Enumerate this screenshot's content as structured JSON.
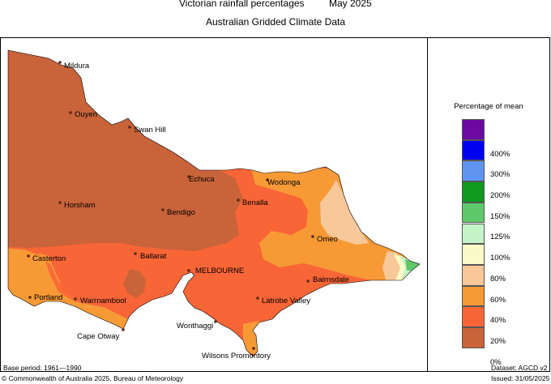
{
  "header": {
    "title": "Victorian rainfall percentages",
    "period": "May 2025",
    "subtitle": "Australian Gridded Climate Data"
  },
  "towns": [
    {
      "name": "Mildura"
    },
    {
      "name": "Ouyen"
    },
    {
      "name": "Swan Hill"
    },
    {
      "name": "Echuca"
    },
    {
      "name": "Wodonga"
    },
    {
      "name": "Horsham"
    },
    {
      "name": "Bendigo"
    },
    {
      "name": "Benalla"
    },
    {
      "name": "Omeo"
    },
    {
      "name": "Casterton"
    },
    {
      "name": "Ballarat"
    },
    {
      "name": "MELBOURNE"
    },
    {
      "name": "Bairnsdale"
    },
    {
      "name": "Portland"
    },
    {
      "name": "Warrnambool"
    },
    {
      "name": "Latrobe Valley"
    },
    {
      "name": "Cape Otway"
    },
    {
      "name": "Wonthaggi"
    },
    {
      "name": "Wilsons Promontory"
    }
  ],
  "legend": {
    "title": "Percentage of mean",
    "items": [
      {
        "label": "",
        "color": "#6a0aa0"
      },
      {
        "label": "400%",
        "color": "#0000f0"
      },
      {
        "label": "300%",
        "color": "#5f93f0"
      },
      {
        "label": "200%",
        "color": "#0d9a1f"
      },
      {
        "label": "150%",
        "color": "#5ec86a"
      },
      {
        "label": "125%",
        "color": "#c5f3c8"
      },
      {
        "label": "100%",
        "color": "#fafac8"
      },
      {
        "label": "80%",
        "color": "#f9c899"
      },
      {
        "label": "60%",
        "color": "#f79a36"
      },
      {
        "label": "40%",
        "color": "#f86537"
      },
      {
        "label": "20%",
        "color": "#c9633a"
      },
      {
        "label": "0%",
        "color": ""
      }
    ]
  },
  "colors": {
    "very_low": "#c9633a",
    "low": "#f86537",
    "below": "#f79a36",
    "near_low": "#f9c899",
    "average": "#fafac8",
    "above": "#c5f3c8",
    "high": "#5ec86a"
  },
  "footer": {
    "base_period": "Base period: 1961—1990",
    "dataset": "Dataset: AGCD v2",
    "copyright": "© Commonwealth of Australia 2025, Bureau of Meteorology",
    "issued": "Issued: 31/05/2025"
  }
}
